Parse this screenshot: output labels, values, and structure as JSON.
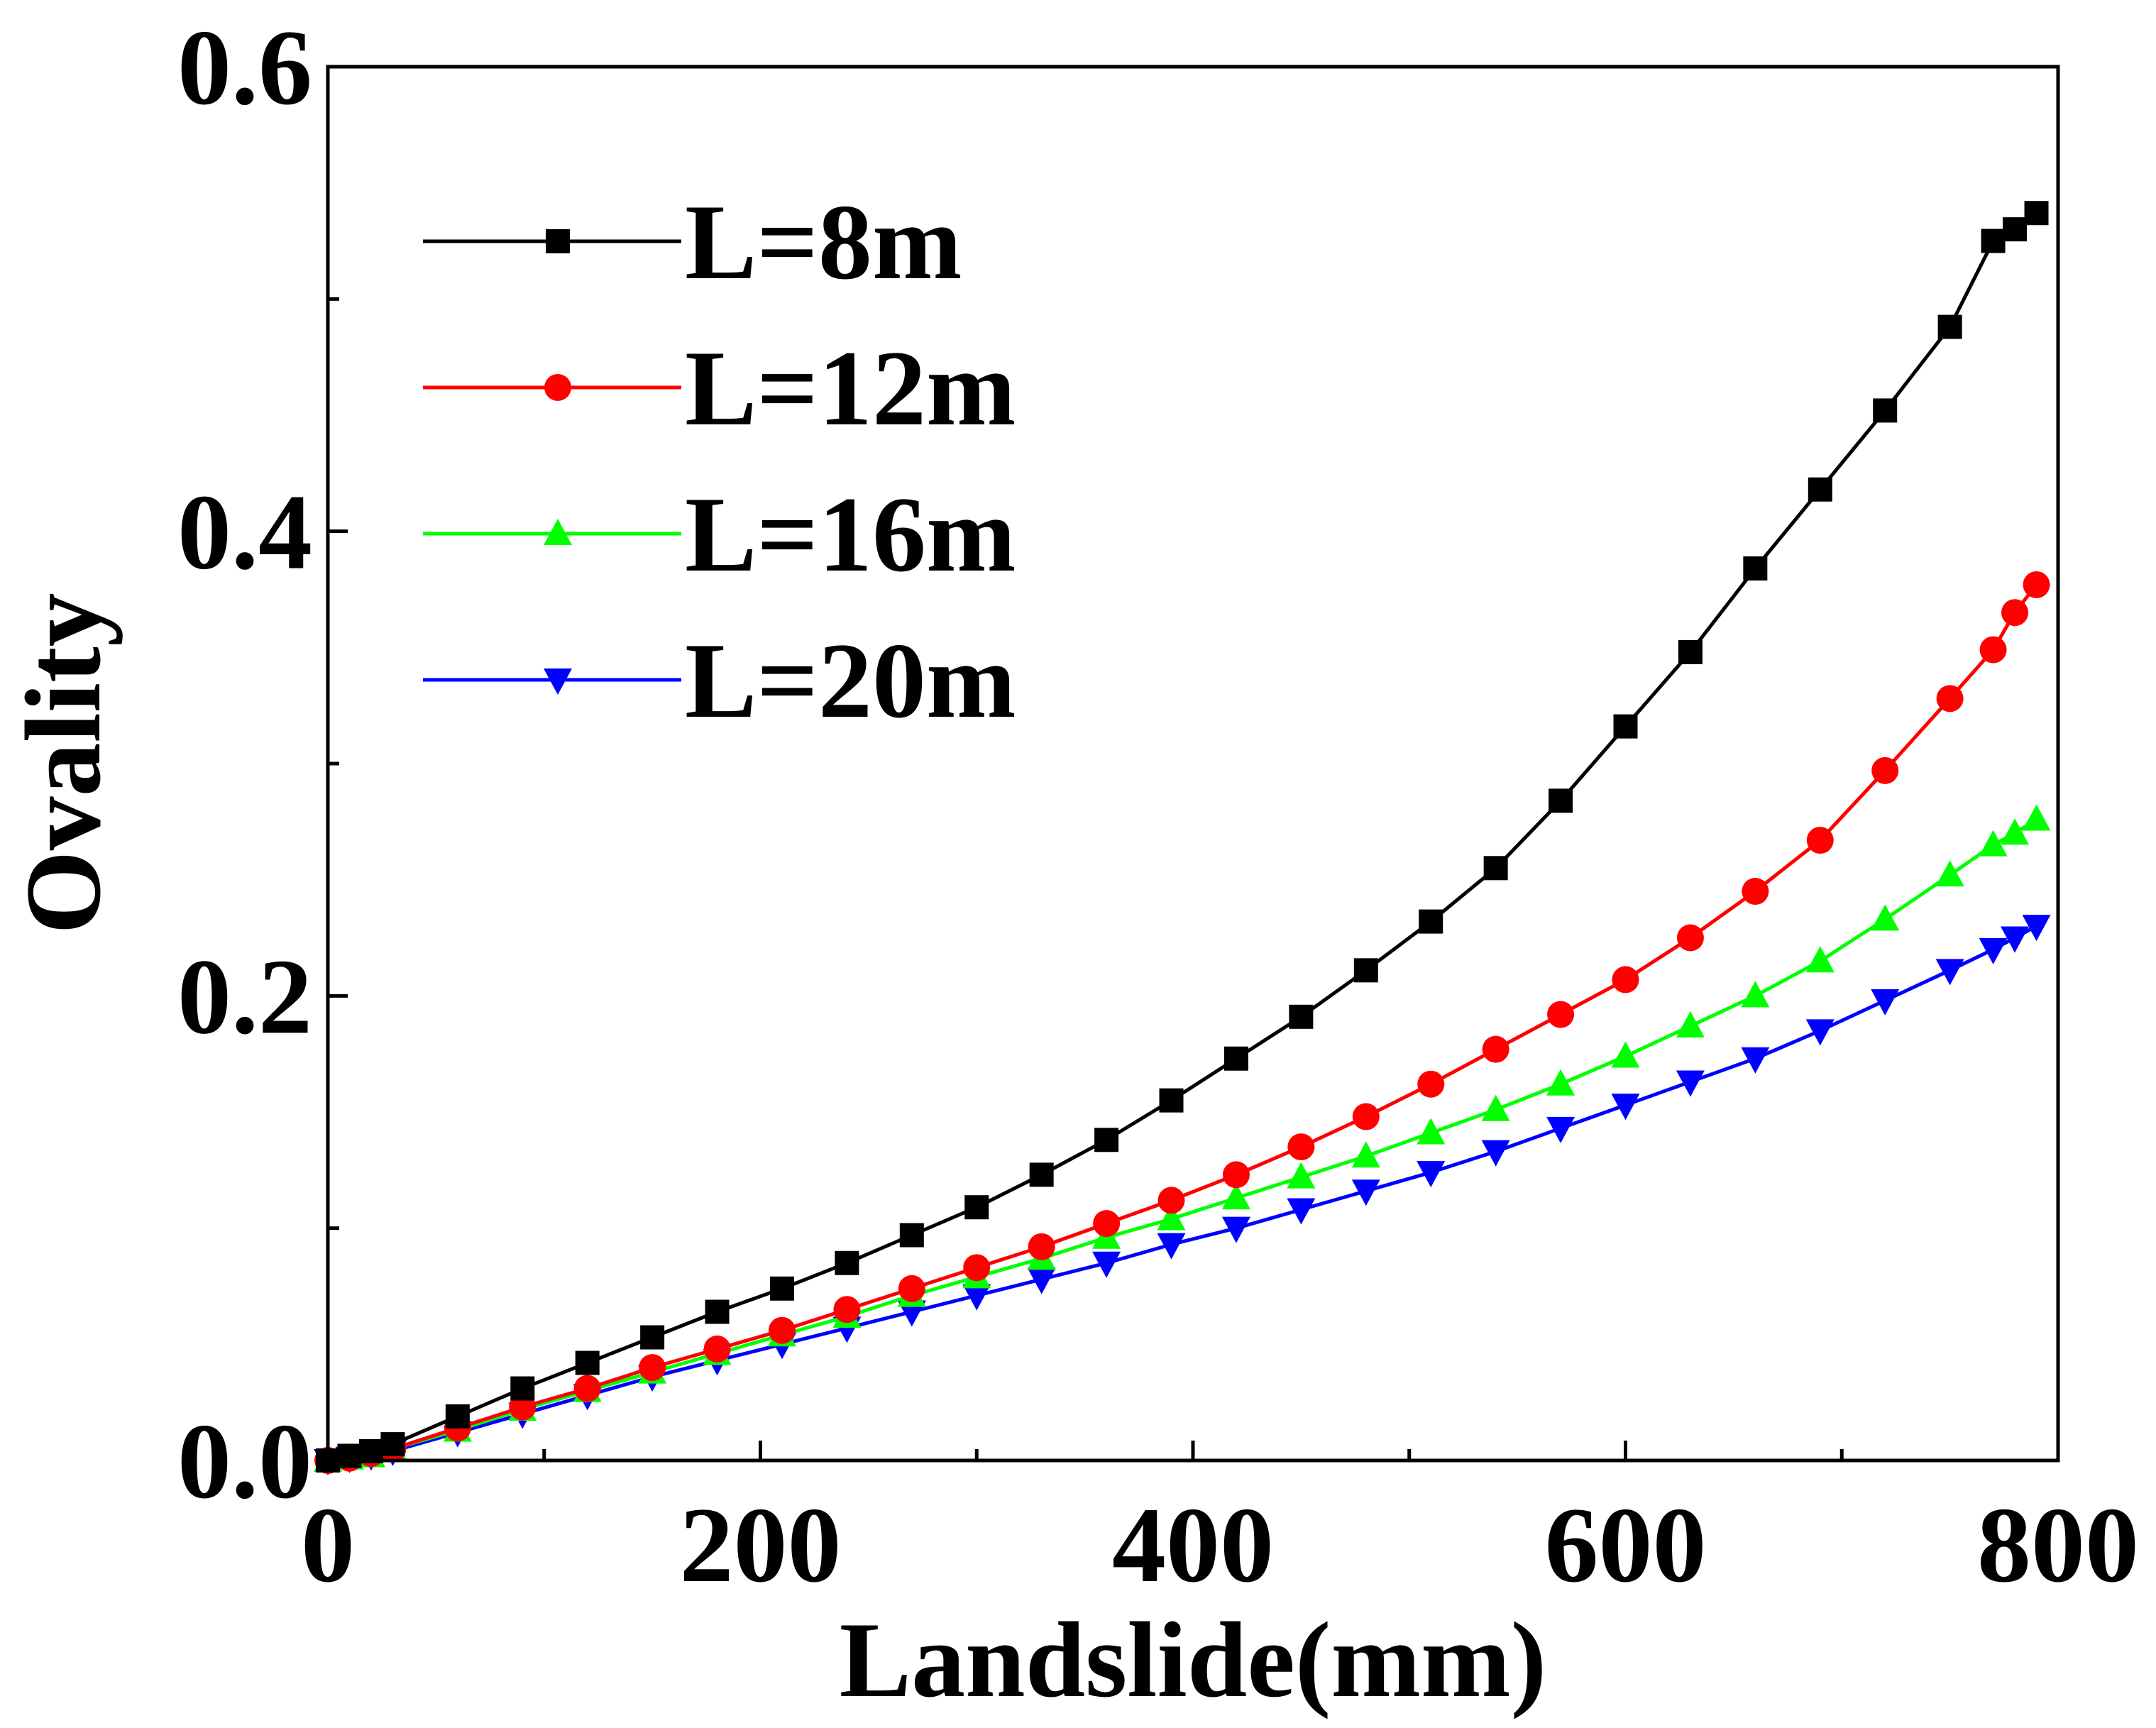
{
  "chart_data": {
    "type": "line",
    "title": "",
    "xlabel": "Landslide(mm)",
    "ylabel": "Ovality",
    "xlim": [
      0,
      800
    ],
    "ylim": [
      0,
      0.6
    ],
    "xticks": [
      0,
      200,
      400,
      600,
      800
    ],
    "xtick_labels": [
      "0",
      "200",
      "400",
      "600",
      "800"
    ],
    "yticks": [
      0,
      0.2,
      0.4,
      0.6
    ],
    "ytick_labels": [
      "0.0",
      "0.2",
      "0.4",
      "0.6"
    ],
    "grid": false,
    "legend_position": "top-left",
    "x": [
      0,
      10,
      20,
      30,
      60,
      90,
      120,
      150,
      180,
      210,
      240,
      270,
      300,
      330,
      360,
      390,
      420,
      450,
      480,
      510,
      540,
      570,
      600,
      630,
      660,
      690,
      720,
      750,
      770,
      780,
      790
    ],
    "series": [
      {
        "name": "L=8m",
        "color": "#000000",
        "marker": "square",
        "values": [
          0,
          0.002,
          0.004,
          0.007,
          0.019,
          0.031,
          0.042,
          0.053,
          0.064,
          0.074,
          0.085,
          0.097,
          0.109,
          0.123,
          0.138,
          0.155,
          0.173,
          0.191,
          0.211,
          0.232,
          0.255,
          0.284,
          0.316,
          0.348,
          0.384,
          0.418,
          0.452,
          0.488,
          0.525,
          0.53,
          0.537
        ]
      },
      {
        "name": "L=12m",
        "color": "#ff0000",
        "marker": "circle",
        "values": [
          0,
          0.001,
          0.003,
          0.005,
          0.014,
          0.023,
          0.031,
          0.04,
          0.048,
          0.056,
          0.065,
          0.074,
          0.083,
          0.092,
          0.102,
          0.112,
          0.123,
          0.135,
          0.148,
          0.162,
          0.177,
          0.192,
          0.207,
          0.225,
          0.245,
          0.267,
          0.297,
          0.328,
          0.349,
          0.365,
          0.377
        ]
      },
      {
        "name": "L=16m",
        "color": "#00ff00",
        "marker": "triangle-up",
        "values": [
          0,
          0.001,
          0.002,
          0.005,
          0.013,
          0.022,
          0.03,
          0.038,
          0.046,
          0.054,
          0.062,
          0.071,
          0.079,
          0.087,
          0.096,
          0.104,
          0.113,
          0.122,
          0.131,
          0.141,
          0.151,
          0.162,
          0.174,
          0.187,
          0.2,
          0.215,
          0.233,
          0.252,
          0.265,
          0.27,
          0.276
        ]
      },
      {
        "name": "L=20m",
        "color": "#0000ff",
        "marker": "triangle-down",
        "values": [
          0,
          0.001,
          0.002,
          0.004,
          0.012,
          0.02,
          0.028,
          0.036,
          0.043,
          0.05,
          0.057,
          0.064,
          0.071,
          0.078,
          0.085,
          0.093,
          0.1,
          0.108,
          0.116,
          0.124,
          0.133,
          0.143,
          0.153,
          0.163,
          0.173,
          0.185,
          0.198,
          0.211,
          0.22,
          0.225,
          0.23
        ]
      }
    ]
  }
}
